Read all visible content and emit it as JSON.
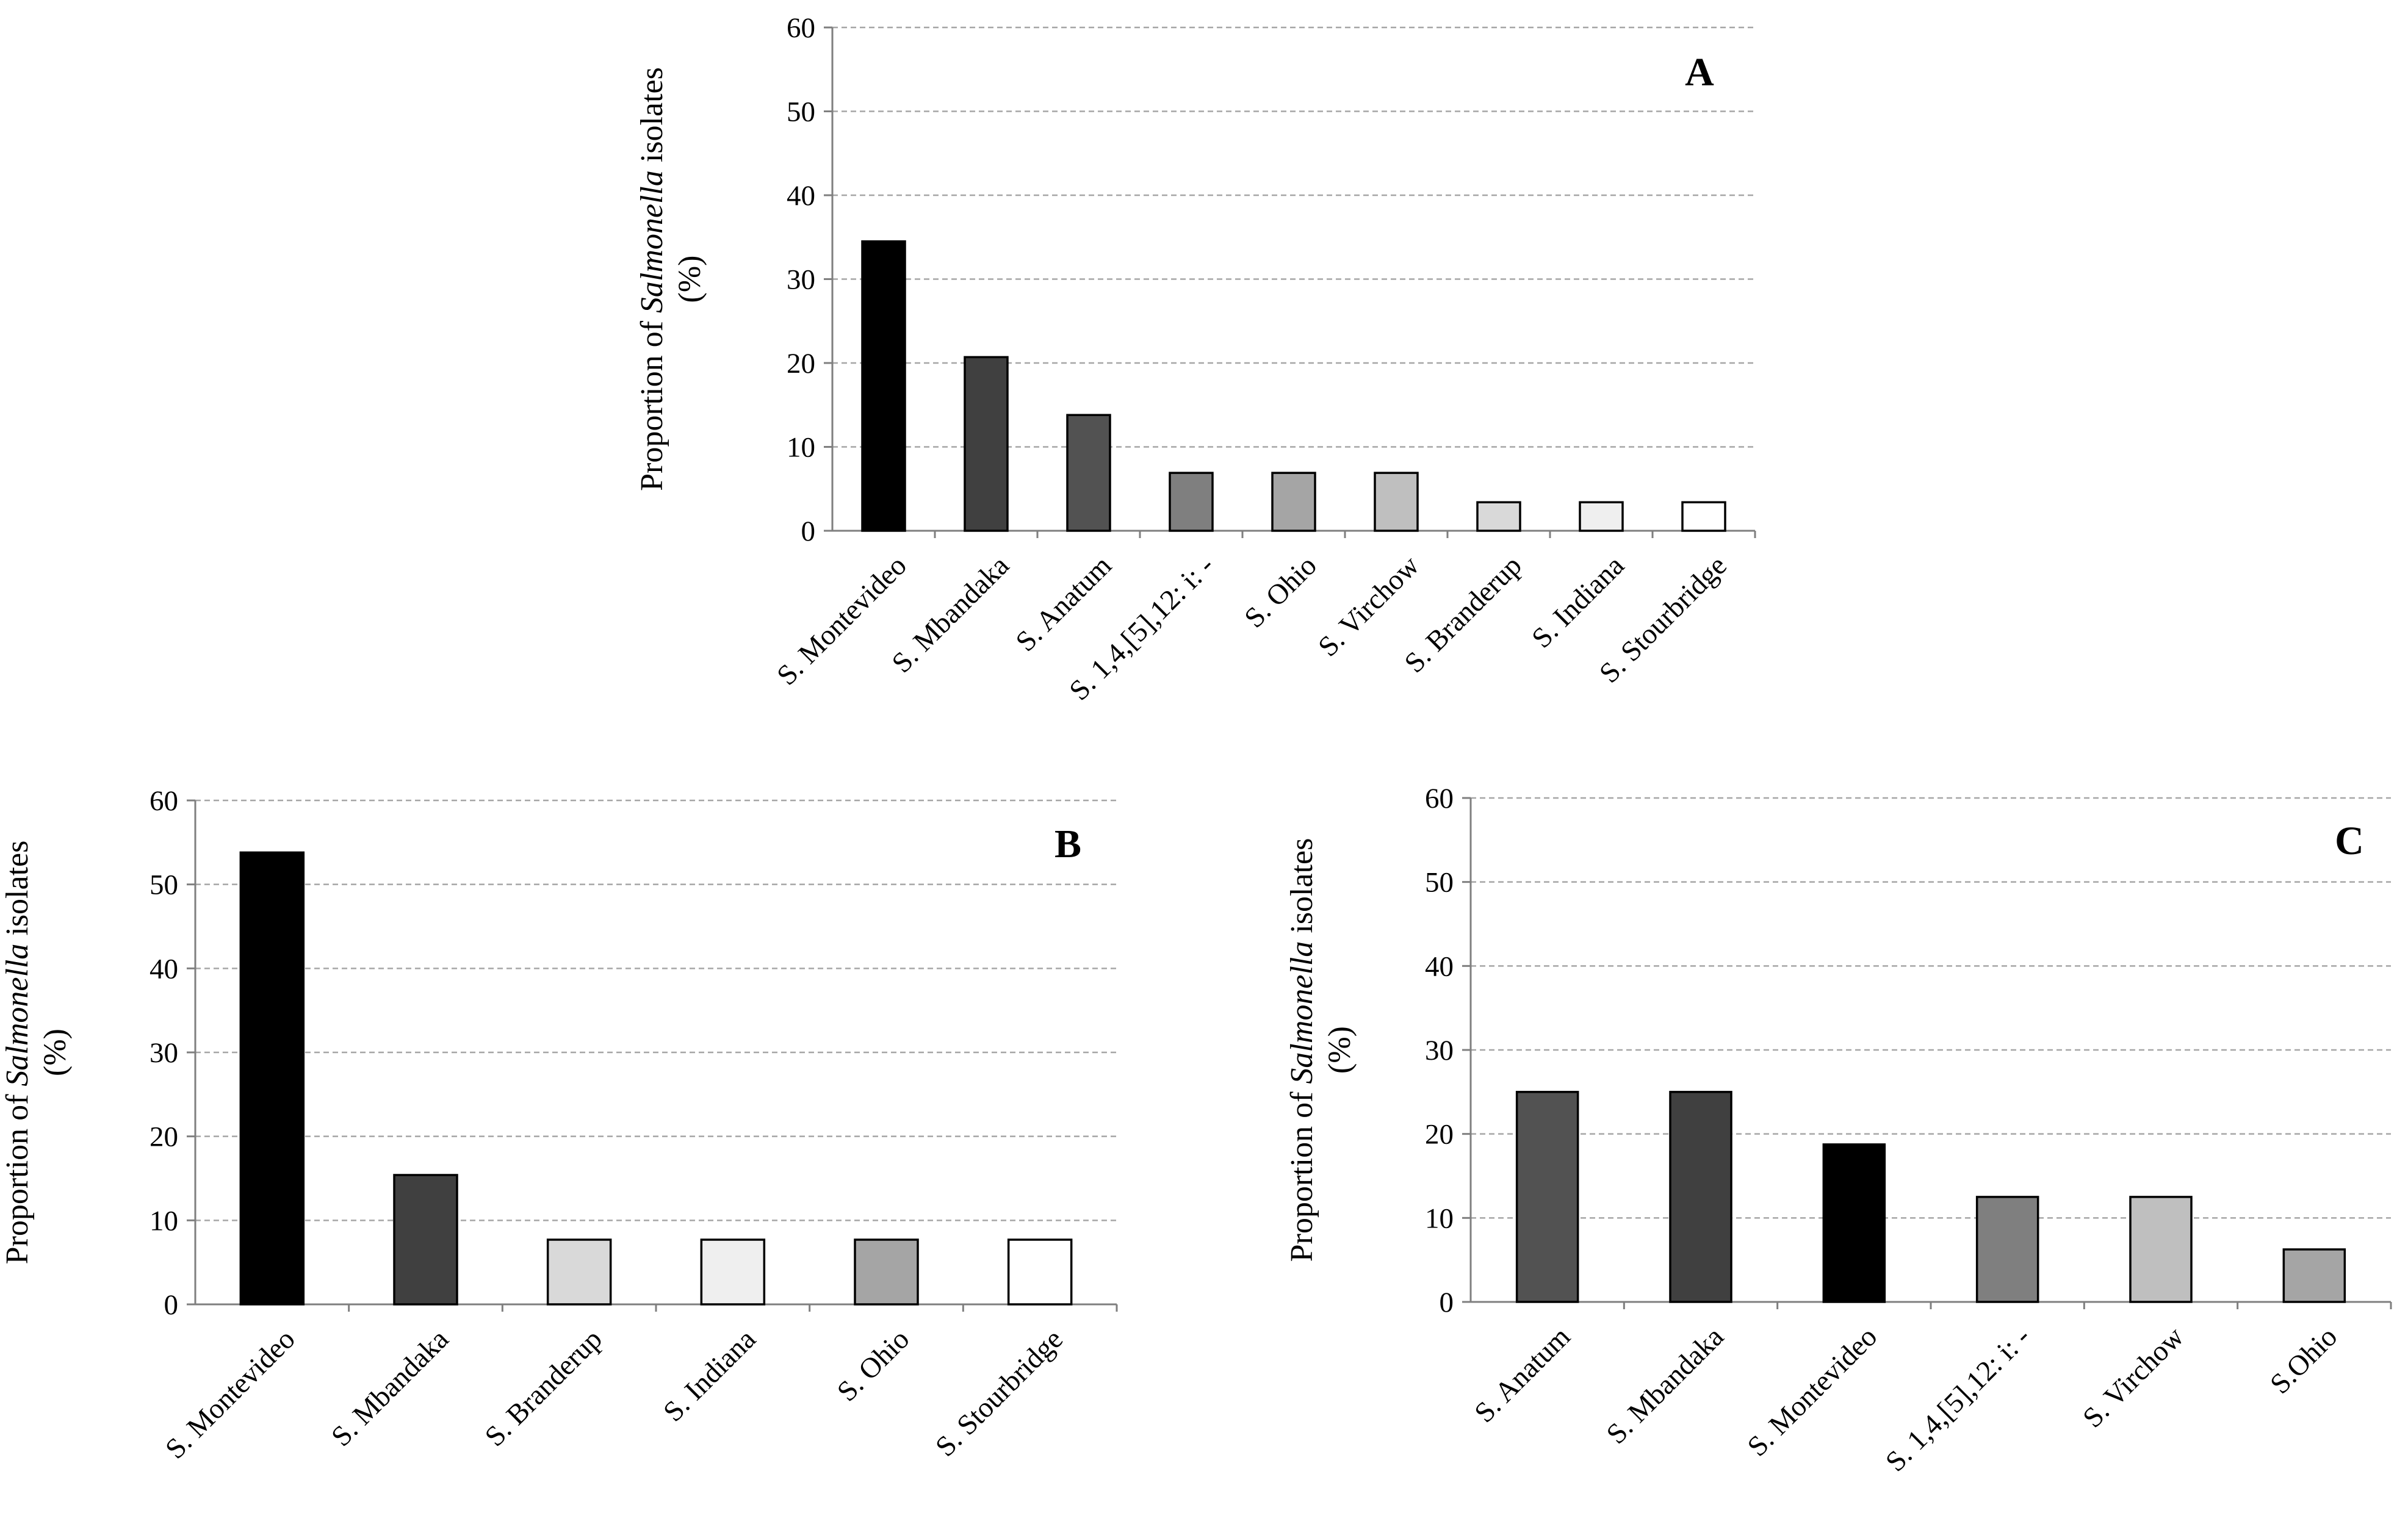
{
  "chart_data": [
    {
      "type": "bar",
      "panel": "A",
      "title": "A",
      "ylabel_parts": [
        "Proportion of ",
        "Salmonella",
        " isolates"
      ],
      "ylabel_unit": "(%)",
      "ylim": [
        0,
        60
      ],
      "yticks": [
        0,
        10,
        20,
        30,
        40,
        50,
        60
      ],
      "grid": true,
      "categories": [
        "S. Montevideo",
        "S. Mbandaka",
        "S. Anatum",
        "S. 1,4,[5],12: i: -",
        "S. Ohio",
        "S. Virchow",
        "S. Branderup",
        "S. Indiana",
        "S. Stourbridge"
      ],
      "values": [
        34.5,
        20.7,
        13.8,
        6.9,
        6.9,
        6.9,
        3.4,
        3.4,
        3.4
      ],
      "colors": [
        "#000000",
        "#404040",
        "#525252",
        "#7f7f7f",
        "#a5a5a5",
        "#bfbfbf",
        "#d9d9d9",
        "#efefef",
        "#ffffff"
      ]
    },
    {
      "type": "bar",
      "panel": "B",
      "title": "B",
      "ylabel_parts": [
        "Proportion of ",
        "Salmonella",
        " isolates"
      ],
      "ylabel_unit": "(%)",
      "ylim": [
        0,
        60
      ],
      "yticks": [
        0,
        10,
        20,
        30,
        40,
        50,
        60
      ],
      "grid": true,
      "categories": [
        "S. Montevideo",
        "S. Mbandaka",
        "S. Branderup",
        "S. Indiana",
        "S. Ohio",
        "S. Stourbridge"
      ],
      "values": [
        53.8,
        15.4,
        7.7,
        7.7,
        7.7,
        7.7
      ],
      "colors": [
        "#000000",
        "#404040",
        "#d9d9d9",
        "#efefef",
        "#a5a5a5",
        "#ffffff"
      ]
    },
    {
      "type": "bar",
      "panel": "C",
      "title": "C",
      "ylabel_parts": [
        "Proportion of ",
        "Salmonella",
        " isolates"
      ],
      "ylabel_unit": "(%)",
      "ylim": [
        0,
        60
      ],
      "yticks": [
        0,
        10,
        20,
        30,
        40,
        50,
        60
      ],
      "grid": true,
      "categories": [
        "S. Anatum",
        "S. Mbandaka",
        "S. Montevideo",
        "S. 1,4,[5],12: i: -",
        "S. Virchow",
        "S.Ohio"
      ],
      "values": [
        25.0,
        25.0,
        18.75,
        12.5,
        12.5,
        6.25
      ],
      "colors": [
        "#525252",
        "#404040",
        "#000000",
        "#7f7f7f",
        "#bfbfbf",
        "#a5a5a5"
      ]
    }
  ]
}
